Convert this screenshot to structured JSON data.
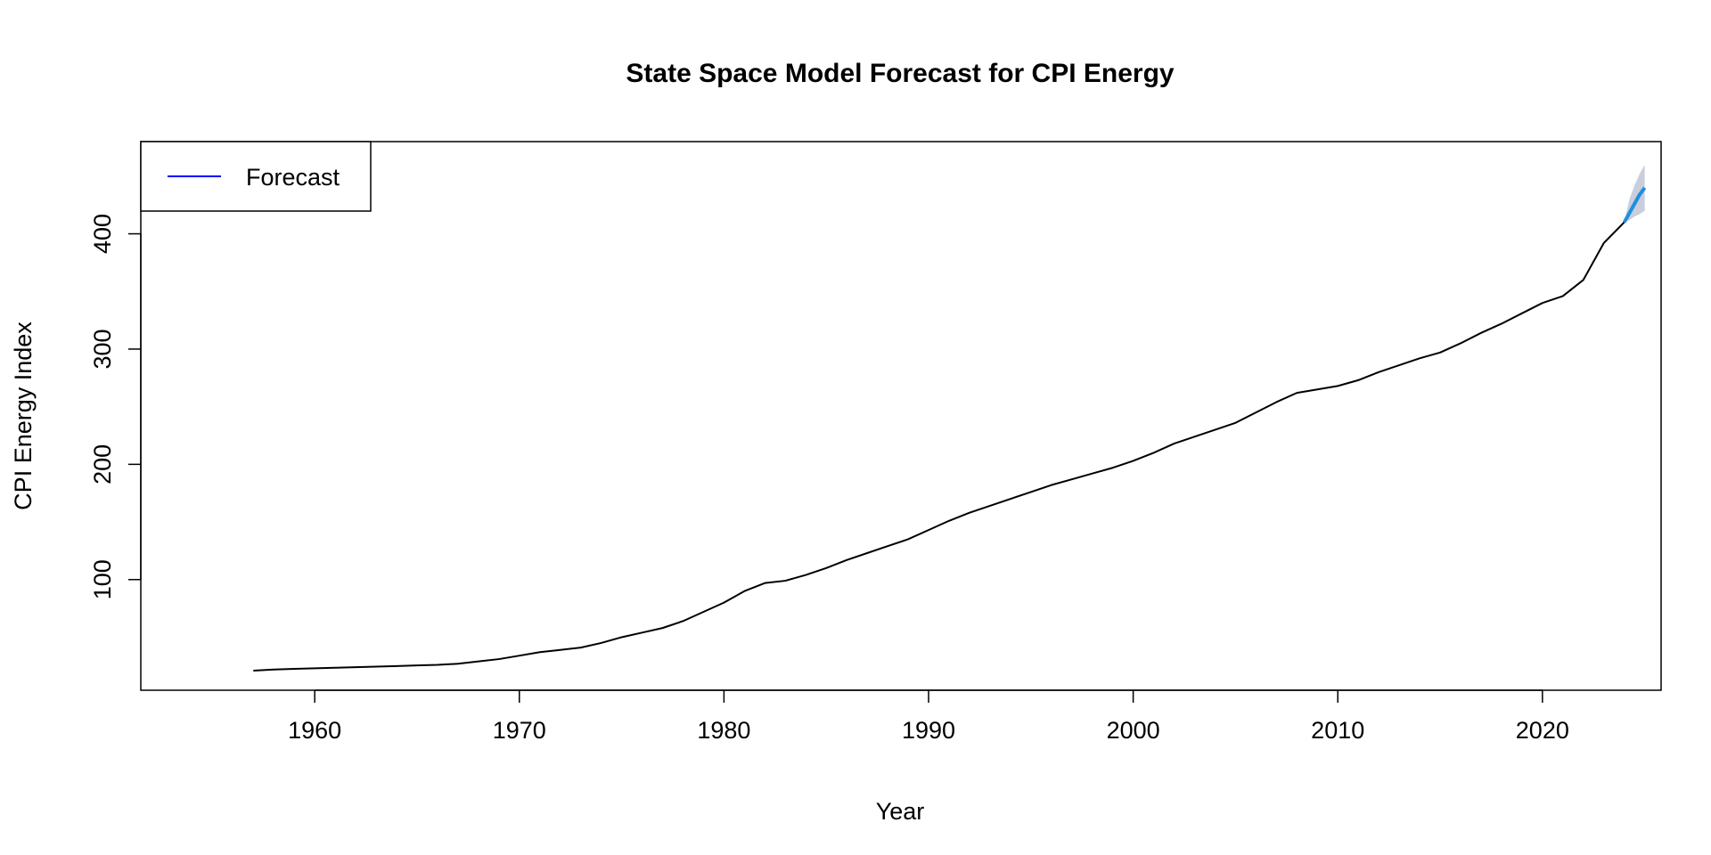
{
  "chart_data": {
    "type": "line",
    "title": "State Space Model Forecast for CPI Energy",
    "xlabel": "Year",
    "ylabel": "CPI Energy Index",
    "xlim": [
      1951.5,
      2025.8
    ],
    "ylim": [
      4,
      480
    ],
    "x_ticks": [
      1960,
      1970,
      1980,
      1990,
      2000,
      2010,
      2020
    ],
    "y_ticks": [
      100,
      200,
      300,
      400
    ],
    "grid": false,
    "legend": {
      "position": "top-left",
      "entries": [
        {
          "label": "Forecast",
          "color": "#0000ff"
        }
      ]
    },
    "series": [
      {
        "color": "#000000",
        "x": [
          1957.0,
          1958,
          1959,
          1960,
          1961,
          1962,
          1963,
          1964,
          1965,
          1966,
          1967,
          1968,
          1969,
          1970,
          1971,
          1972,
          1973,
          1974,
          1975,
          1976,
          1977,
          1978,
          1979,
          1980,
          1981,
          1982,
          1983,
          1984,
          1985,
          1986,
          1987,
          1988,
          1989,
          1990,
          1991,
          1992,
          1993,
          1994,
          1995,
          1996,
          1997,
          1998,
          1999,
          2000,
          2001,
          2002,
          2003,
          2004,
          2005,
          2006,
          2007,
          2008,
          2009,
          2010,
          2011,
          2012,
          2013,
          2014,
          2015,
          2016,
          2017,
          2018,
          2019,
          2020,
          2021,
          2022,
          2023,
          2024.0
        ],
        "y": [
          21,
          22,
          22.5,
          23,
          23.5,
          24,
          24.5,
          25,
          25.5,
          26,
          27,
          29,
          31,
          34,
          37,
          39,
          41,
          45,
          50,
          54,
          58,
          64,
          72,
          80,
          90,
          97,
          99,
          104,
          110,
          117,
          123,
          129,
          135,
          143,
          151,
          158,
          164,
          170,
          176,
          182,
          187,
          192,
          197,
          203,
          210,
          218,
          224,
          230,
          236,
          245,
          254,
          262,
          265,
          268,
          273,
          280,
          286,
          292,
          297,
          305,
          314,
          322,
          331,
          340,
          346,
          360,
          392,
          410
        ]
      },
      {
        "name": "Forecast",
        "color": "#1f8fe0",
        "x": [
          2024.0,
          2024.25,
          2024.5,
          2024.75,
          2025.0
        ],
        "y": [
          410,
          418,
          426,
          434,
          440
        ],
        "lower": [
          410,
          412,
          415,
          417,
          420
        ],
        "upper": [
          410,
          430,
          442,
          452,
          460
        ]
      }
    ]
  }
}
